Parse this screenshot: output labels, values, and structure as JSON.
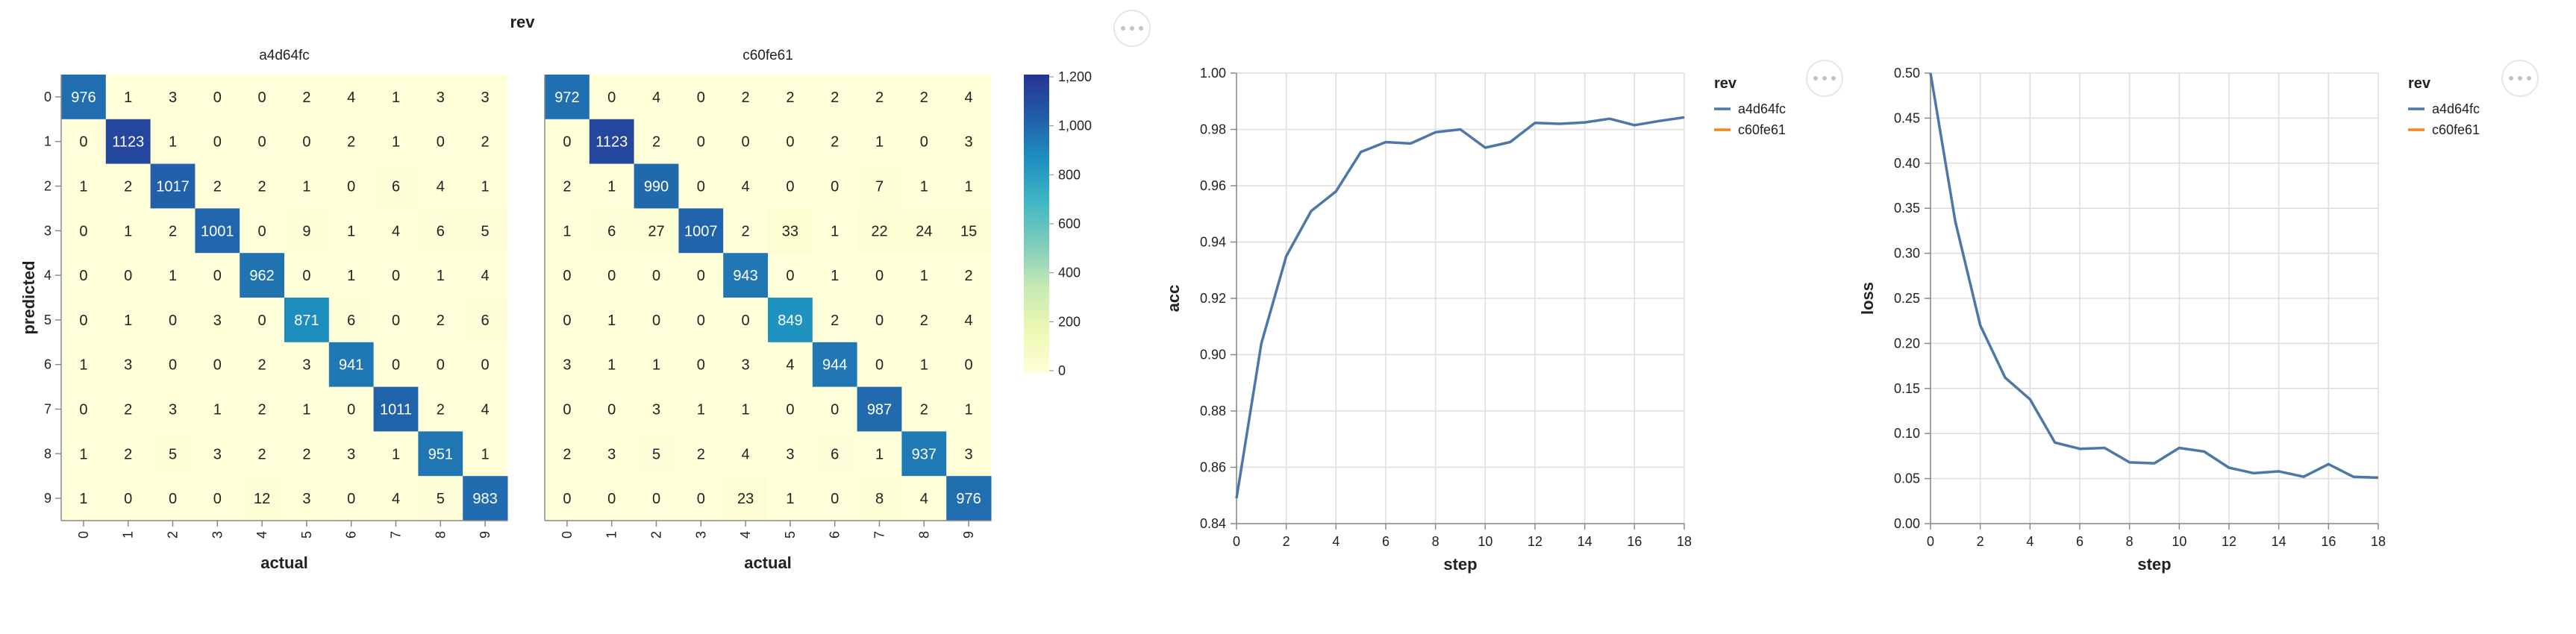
{
  "chart_data": [
    {
      "type": "heatmap",
      "title": "rev",
      "xlabel": "actual",
      "ylabel": "predicted",
      "categories": [
        "0",
        "1",
        "2",
        "3",
        "4",
        "5",
        "6",
        "7",
        "8",
        "9"
      ],
      "color_scale": {
        "domain": [
          0,
          1200
        ],
        "ticks": [
          "0",
          "200",
          "400",
          "600",
          "800",
          "1,000",
          "1,200"
        ],
        "colors": [
          "#ffffd9",
          "#edf8b1",
          "#c7e9b4",
          "#7fcdbb",
          "#41b6c4",
          "#1d91c0",
          "#225ea8",
          "#253494"
        ]
      },
      "facets": [
        {
          "name": "a4d64fc",
          "matrix": [
            [
              976,
              1,
              3,
              0,
              0,
              2,
              4,
              1,
              3,
              3
            ],
            [
              0,
              1123,
              1,
              0,
              0,
              0,
              2,
              1,
              0,
              2
            ],
            [
              1,
              2,
              1017,
              2,
              2,
              1,
              0,
              6,
              4,
              1
            ],
            [
              0,
              1,
              2,
              1001,
              0,
              9,
              1,
              4,
              6,
              5
            ],
            [
              0,
              0,
              1,
              0,
              962,
              0,
              1,
              0,
              1,
              4
            ],
            [
              0,
              1,
              0,
              3,
              0,
              871,
              6,
              0,
              2,
              6
            ],
            [
              1,
              3,
              0,
              0,
              2,
              3,
              941,
              0,
              0,
              0
            ],
            [
              0,
              2,
              3,
              1,
              2,
              1,
              0,
              1011,
              2,
              4
            ],
            [
              1,
              2,
              5,
              3,
              2,
              2,
              3,
              1,
              951,
              1
            ],
            [
              1,
              0,
              0,
              0,
              12,
              3,
              0,
              4,
              5,
              983
            ]
          ]
        },
        {
          "name": "c60fe61",
          "matrix": [
            [
              972,
              0,
              4,
              0,
              2,
              2,
              2,
              2,
              2,
              4
            ],
            [
              0,
              1123,
              2,
              0,
              0,
              0,
              2,
              1,
              0,
              3
            ],
            [
              2,
              1,
              990,
              0,
              4,
              0,
              0,
              7,
              1,
              1
            ],
            [
              1,
              6,
              27,
              1007,
              2,
              33,
              1,
              22,
              24,
              15
            ],
            [
              0,
              0,
              0,
              0,
              943,
              0,
              1,
              0,
              1,
              2
            ],
            [
              0,
              1,
              0,
              0,
              0,
              849,
              2,
              0,
              2,
              4
            ],
            [
              3,
              1,
              1,
              0,
              3,
              4,
              944,
              0,
              1,
              0
            ],
            [
              0,
              0,
              3,
              1,
              1,
              0,
              0,
              987,
              2,
              1
            ],
            [
              2,
              3,
              5,
              2,
              4,
              3,
              6,
              1,
              937,
              3
            ],
            [
              0,
              0,
              0,
              0,
              23,
              1,
              0,
              8,
              4,
              976
            ]
          ]
        }
      ]
    },
    {
      "type": "line",
      "xlabel": "step",
      "ylabel": "acc",
      "xlim": [
        0,
        18
      ],
      "ylim": [
        0.84,
        1.0
      ],
      "x_ticks": [
        0,
        2,
        4,
        6,
        8,
        10,
        12,
        14,
        16,
        18
      ],
      "y_ticks": [
        "0.84",
        "0.86",
        "0.88",
        "0.90",
        "0.92",
        "0.94",
        "0.96",
        "0.98",
        "1.00"
      ],
      "legend_title": "rev",
      "legend_position": "right",
      "grid": true,
      "series": [
        {
          "name": "a4d64fc",
          "color": "#4c78a8",
          "x": [
            0,
            1,
            2,
            3,
            4,
            5,
            6,
            7,
            8,
            9,
            10,
            11,
            12,
            13,
            14,
            15,
            16,
            17,
            18
          ],
          "y": [
            0.849,
            0.904,
            0.935,
            0.951,
            0.958,
            0.972,
            0.9755,
            0.975,
            0.979,
            0.98,
            0.9735,
            0.9755,
            0.9823,
            0.982,
            0.9825,
            0.9838,
            0.9815,
            0.983,
            0.9843
          ]
        },
        {
          "name": "c60fe61",
          "color": "#f58518",
          "x": [],
          "y": []
        }
      ]
    },
    {
      "type": "line",
      "xlabel": "step",
      "ylabel": "loss",
      "xlim": [
        0,
        18
      ],
      "ylim": [
        0.0,
        0.5
      ],
      "x_ticks": [
        0,
        2,
        4,
        6,
        8,
        10,
        12,
        14,
        16,
        18
      ],
      "y_ticks": [
        "0.00",
        "0.05",
        "0.10",
        "0.15",
        "0.20",
        "0.25",
        "0.30",
        "0.35",
        "0.40",
        "0.45",
        "0.50"
      ],
      "legend_title": "rev",
      "legend_position": "right",
      "grid": true,
      "series": [
        {
          "name": "a4d64fc",
          "color": "#4c78a8",
          "x": [
            0,
            1,
            2,
            3,
            4,
            5,
            6,
            7,
            8,
            9,
            10,
            11,
            12,
            13,
            14,
            15,
            16,
            17,
            18
          ],
          "y": [
            0.5,
            0.335,
            0.22,
            0.162,
            0.138,
            0.09,
            0.083,
            0.084,
            0.068,
            0.067,
            0.084,
            0.08,
            0.062,
            0.056,
            0.058,
            0.052,
            0.066,
            0.052,
            0.051
          ]
        },
        {
          "name": "c60fe61",
          "color": "#f58518",
          "x": [],
          "y": []
        }
      ]
    }
  ],
  "actions": {
    "more_icon": "more-horizontal-icon"
  }
}
